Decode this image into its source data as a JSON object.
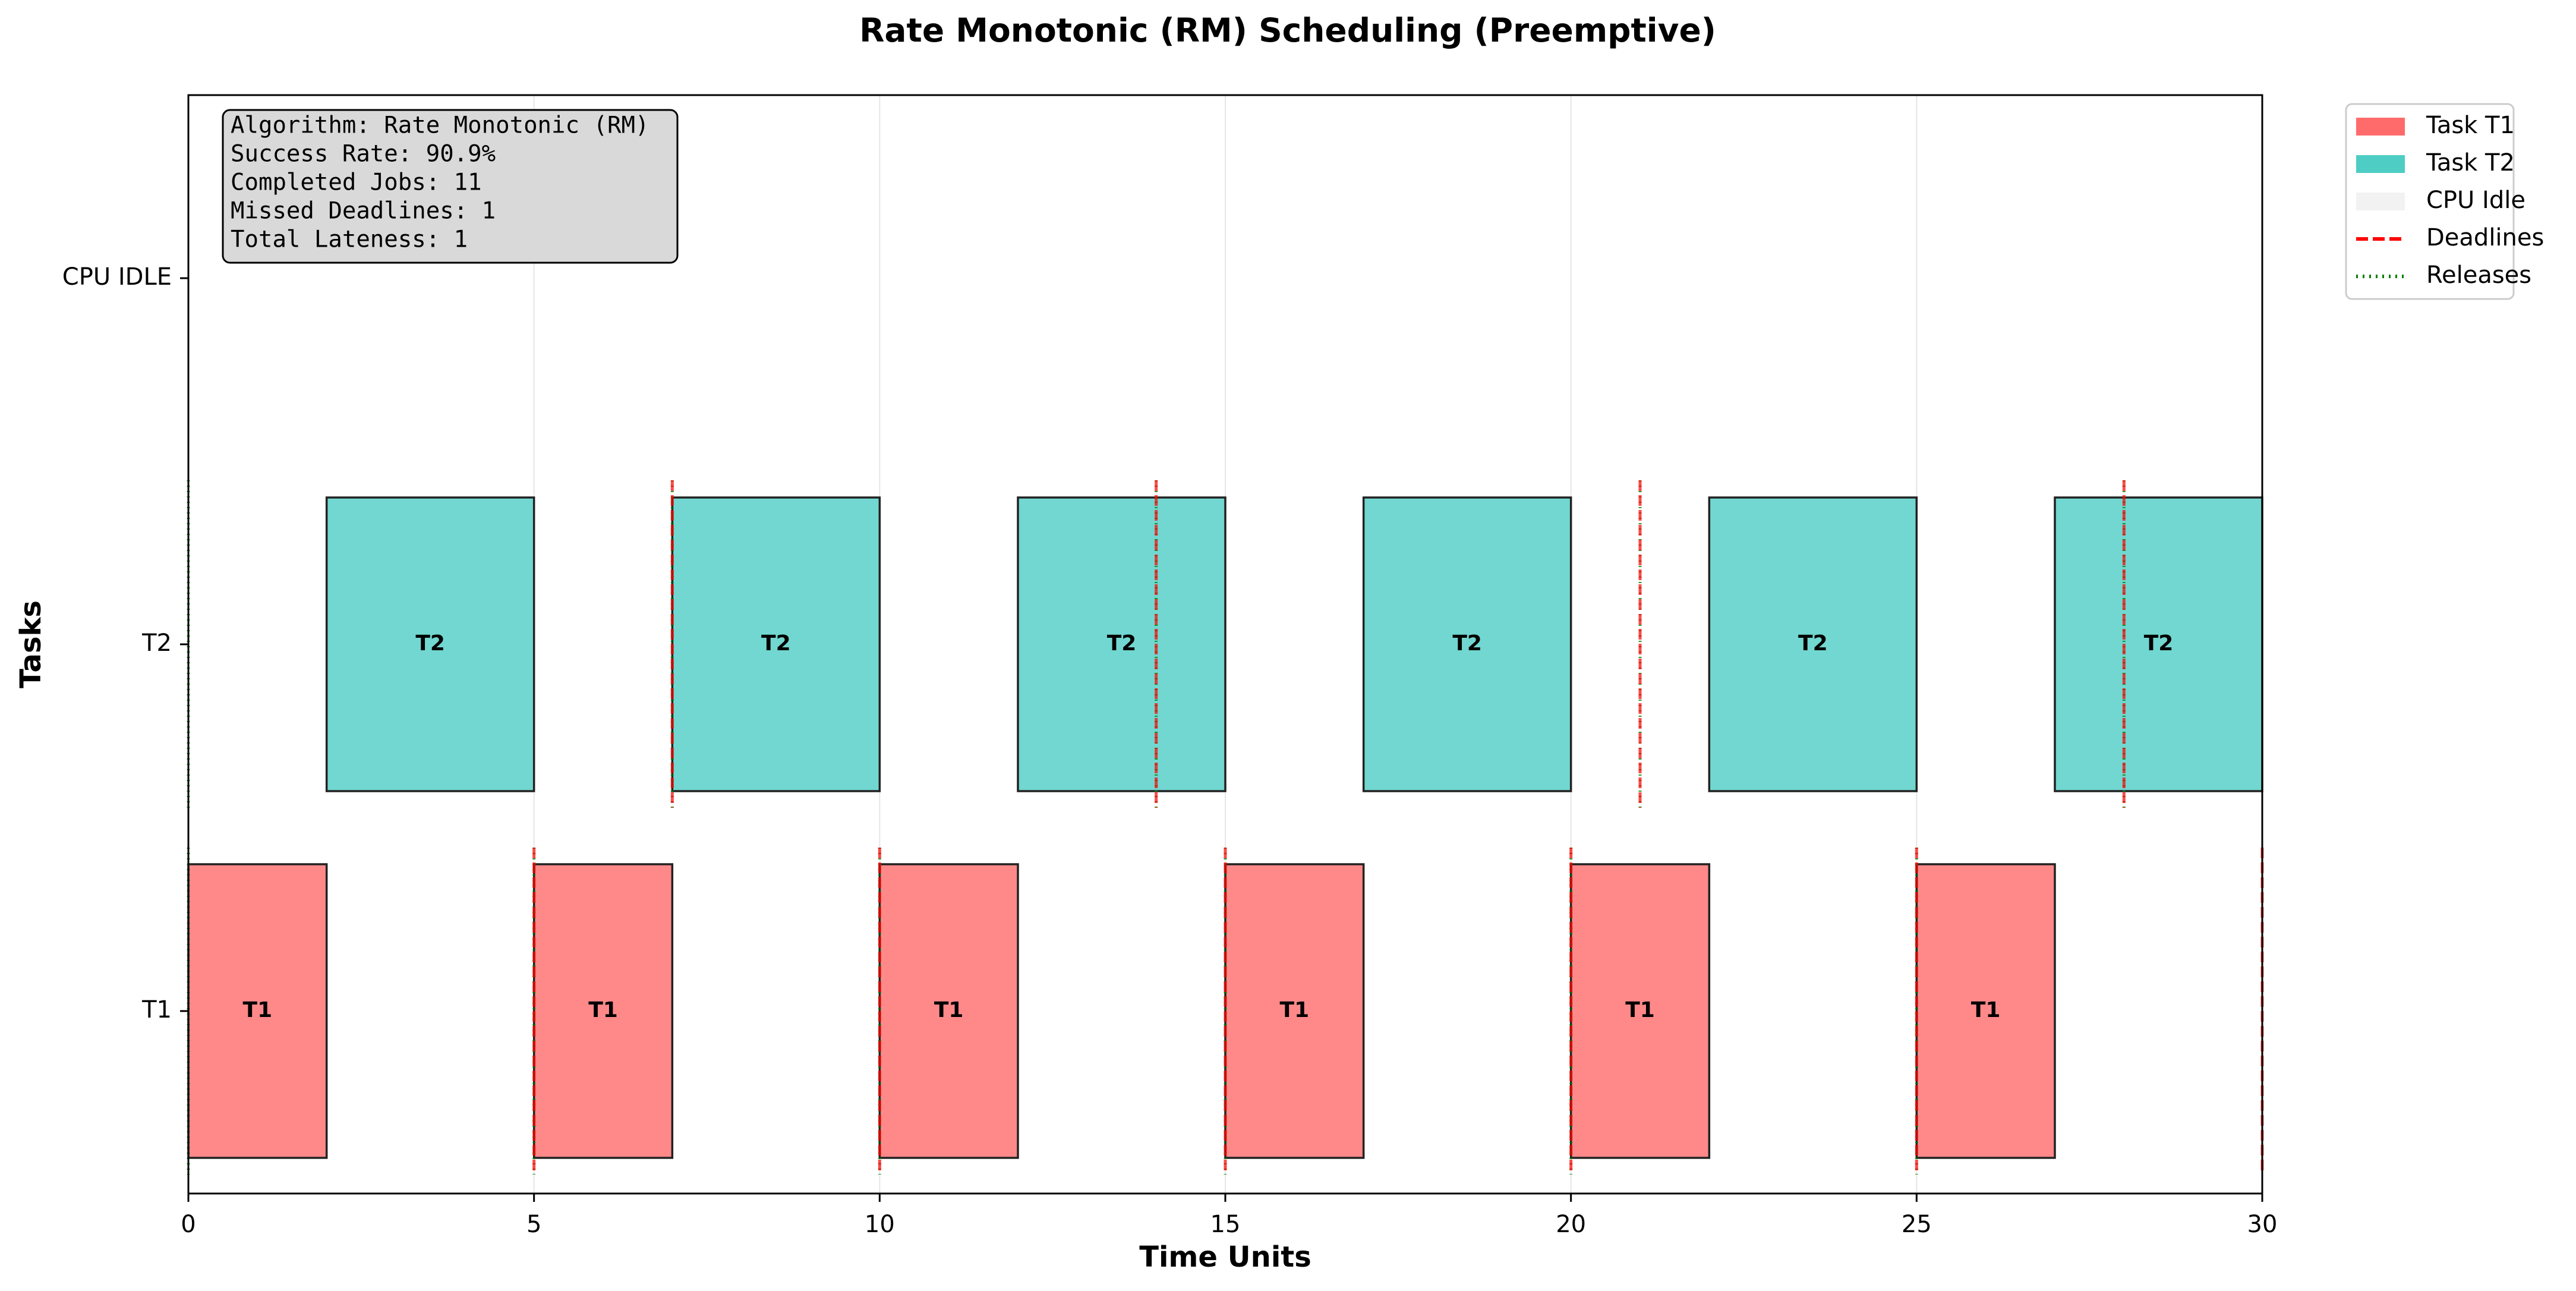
{
  "chart_data": {
    "type": "gantt",
    "title": "Rate Monotonic (RM) Scheduling (Preemptive)",
    "xlabel": "Time Units",
    "ylabel": "Tasks",
    "xlim": [
      0,
      30
    ],
    "xticks": [
      0,
      5,
      10,
      15,
      20,
      25,
      30
    ],
    "xtick_labels": [
      "0",
      "5",
      "10",
      "15",
      "20",
      "25",
      "30"
    ],
    "rows": [
      "T1",
      "T2",
      "CPU IDLE"
    ],
    "grid": true,
    "legend_position": "outside-top-right",
    "colors": {
      "T1": "#ff6b6b",
      "T2": "#4ecdc4",
      "idle": "#f2f2f2",
      "deadline": "#ff0000",
      "release": "#008000",
      "info_box": "#d9d9d9"
    },
    "series": [
      {
        "name": "Task T1",
        "row": "T1",
        "label": "T1",
        "segments": [
          [
            0,
            2
          ],
          [
            5,
            7
          ],
          [
            10,
            12
          ],
          [
            15,
            17
          ],
          [
            20,
            22
          ],
          [
            25,
            27
          ]
        ]
      },
      {
        "name": "Task T2",
        "row": "T2",
        "label": "T2",
        "segments": [
          [
            2,
            5
          ],
          [
            7,
            10
          ],
          [
            12,
            15
          ],
          [
            17,
            20
          ],
          [
            22,
            25
          ],
          [
            27,
            30
          ]
        ]
      }
    ],
    "markers": {
      "T1": {
        "releases": [
          0,
          5,
          10,
          15,
          20,
          25
        ],
        "deadlines": [
          5,
          10,
          15,
          20,
          25,
          30
        ]
      },
      "T2": {
        "releases": [
          0,
          7,
          14,
          21,
          28
        ],
        "deadlines": [
          7,
          14,
          21,
          28
        ]
      }
    },
    "legend": [
      {
        "label": "Task T1",
        "kind": "patch",
        "color": "#ff6b6b"
      },
      {
        "label": "Task T2",
        "kind": "patch",
        "color": "#4ecdc4"
      },
      {
        "label": "CPU Idle",
        "kind": "patch",
        "color": "#f2f2f2"
      },
      {
        "label": "Deadlines",
        "kind": "dashed",
        "color": "#ff0000"
      },
      {
        "label": "Releases",
        "kind": "dotted",
        "color": "#008000"
      }
    ],
    "info_box": [
      "Algorithm: Rate Monotonic (RM)",
      "Success Rate: 90.9%",
      "Completed Jobs: 11",
      "Missed Deadlines: 1",
      "Total Lateness: 1"
    ]
  }
}
